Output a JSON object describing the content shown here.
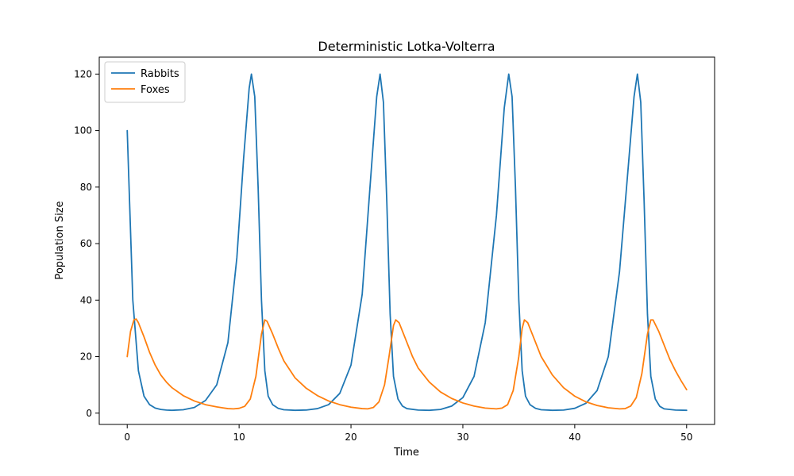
{
  "chart_data": {
    "type": "line",
    "title": "Deterministic Lotka-Volterra",
    "xlabel": "Time",
    "ylabel": "Population Size",
    "xlim": [
      -2.5,
      52.5
    ],
    "ylim": [
      -4,
      126
    ],
    "xticks": [
      0,
      10,
      20,
      30,
      40,
      50
    ],
    "yticks": [
      0,
      20,
      40,
      60,
      80,
      100,
      120
    ],
    "grid": false,
    "legend_position": "upper-left",
    "series": [
      {
        "name": "Rabbits",
        "color": "#1f77b4",
        "points": [
          [
            0,
            100
          ],
          [
            0.5,
            40
          ],
          [
            1,
            15
          ],
          [
            1.5,
            6
          ],
          [
            2,
            3
          ],
          [
            2.5,
            1.8
          ],
          [
            3,
            1.3
          ],
          [
            3.5,
            1.1
          ],
          [
            4,
            1.0
          ],
          [
            5,
            1.2
          ],
          [
            6,
            2
          ],
          [
            7,
            4.5
          ],
          [
            8,
            10
          ],
          [
            9,
            25
          ],
          [
            9.8,
            55
          ],
          [
            10.4,
            90
          ],
          [
            10.9,
            115
          ],
          [
            11.1,
            120
          ],
          [
            11.4,
            112
          ],
          [
            11.7,
            80
          ],
          [
            12,
            40
          ],
          [
            12.3,
            15
          ],
          [
            12.6,
            6
          ],
          [
            13,
            3
          ],
          [
            13.5,
            1.7
          ],
          [
            14,
            1.2
          ],
          [
            15,
            1.0
          ],
          [
            16,
            1.1
          ],
          [
            17,
            1.6
          ],
          [
            18,
            3
          ],
          [
            19,
            7
          ],
          [
            20,
            17
          ],
          [
            21,
            42
          ],
          [
            21.7,
            80
          ],
          [
            22.3,
            112
          ],
          [
            22.6,
            120
          ],
          [
            22.9,
            110
          ],
          [
            23.2,
            75
          ],
          [
            23.5,
            35
          ],
          [
            23.8,
            13
          ],
          [
            24.2,
            5
          ],
          [
            24.6,
            2.5
          ],
          [
            25,
            1.6
          ],
          [
            26,
            1.1
          ],
          [
            27,
            1.0
          ],
          [
            28,
            1.3
          ],
          [
            29,
            2.5
          ],
          [
            30,
            5.5
          ],
          [
            31,
            13
          ],
          [
            32,
            32
          ],
          [
            33,
            70
          ],
          [
            33.7,
            108
          ],
          [
            34.1,
            120
          ],
          [
            34.4,
            112
          ],
          [
            34.7,
            80
          ],
          [
            35,
            40
          ],
          [
            35.3,
            15
          ],
          [
            35.6,
            6
          ],
          [
            36,
            3
          ],
          [
            36.5,
            1.7
          ],
          [
            37,
            1.2
          ],
          [
            38,
            1.0
          ],
          [
            39,
            1.1
          ],
          [
            40,
            1.7
          ],
          [
            41,
            3.5
          ],
          [
            42,
            8
          ],
          [
            43,
            20
          ],
          [
            44,
            50
          ],
          [
            44.8,
            88
          ],
          [
            45.3,
            112
          ],
          [
            45.6,
            120
          ],
          [
            45.9,
            110
          ],
          [
            46.2,
            75
          ],
          [
            46.5,
            35
          ],
          [
            46.8,
            13
          ],
          [
            47.2,
            5
          ],
          [
            47.6,
            2.4
          ],
          [
            48,
            1.5
          ],
          [
            49,
            1.1
          ],
          [
            50,
            1.0
          ]
        ]
      },
      {
        "name": "Foxes",
        "color": "#ff7f0e",
        "points": [
          [
            0,
            20
          ],
          [
            0.3,
            29
          ],
          [
            0.6,
            33
          ],
          [
            0.8,
            33.3
          ],
          [
            1,
            32
          ],
          [
            1.5,
            27
          ],
          [
            2,
            21.5
          ],
          [
            2.5,
            17
          ],
          [
            3,
            13.5
          ],
          [
            3.5,
            11
          ],
          [
            4,
            9
          ],
          [
            5,
            6.2
          ],
          [
            6,
            4.3
          ],
          [
            7,
            3.0
          ],
          [
            8,
            2.2
          ],
          [
            8.5,
            1.9
          ],
          [
            9,
            1.6
          ],
          [
            9.5,
            1.5
          ],
          [
            10,
            1.7
          ],
          [
            10.5,
            2.4
          ],
          [
            11,
            5
          ],
          [
            11.5,
            13
          ],
          [
            12,
            28
          ],
          [
            12.3,
            33
          ],
          [
            12.5,
            32.5
          ],
          [
            13,
            28
          ],
          [
            13.5,
            23
          ],
          [
            14,
            18.5
          ],
          [
            15,
            12.5
          ],
          [
            16,
            8.8
          ],
          [
            17,
            6.2
          ],
          [
            18,
            4.3
          ],
          [
            19,
            3.0
          ],
          [
            20,
            2.1
          ],
          [
            21,
            1.6
          ],
          [
            21.5,
            1.5
          ],
          [
            22,
            2.0
          ],
          [
            22.5,
            4
          ],
          [
            23,
            10
          ],
          [
            23.4,
            20
          ],
          [
            23.8,
            31
          ],
          [
            24,
            33
          ],
          [
            24.3,
            32
          ],
          [
            24.8,
            27
          ],
          [
            25.5,
            20
          ],
          [
            26,
            16
          ],
          [
            27,
            11
          ],
          [
            28,
            7.5
          ],
          [
            29,
            5.2
          ],
          [
            30,
            3.6
          ],
          [
            31,
            2.5
          ],
          [
            32,
            1.8
          ],
          [
            33,
            1.5
          ],
          [
            33.5,
            1.8
          ],
          [
            34,
            3
          ],
          [
            34.5,
            8
          ],
          [
            35,
            20
          ],
          [
            35.3,
            30
          ],
          [
            35.5,
            33
          ],
          [
            35.8,
            32
          ],
          [
            36.3,
            27
          ],
          [
            37,
            20
          ],
          [
            38,
            13.5
          ],
          [
            39,
            9
          ],
          [
            40,
            6
          ],
          [
            41,
            4
          ],
          [
            42,
            2.7
          ],
          [
            43,
            1.9
          ],
          [
            44,
            1.5
          ],
          [
            44.5,
            1.6
          ],
          [
            45,
            2.5
          ],
          [
            45.5,
            5.5
          ],
          [
            46,
            14
          ],
          [
            46.5,
            28
          ],
          [
            46.8,
            33
          ],
          [
            47,
            33
          ],
          [
            47.5,
            29
          ],
          [
            48,
            24
          ],
          [
            48.5,
            19
          ],
          [
            49,
            15
          ],
          [
            49.5,
            11.5
          ],
          [
            50,
            8.3
          ]
        ]
      }
    ]
  }
}
